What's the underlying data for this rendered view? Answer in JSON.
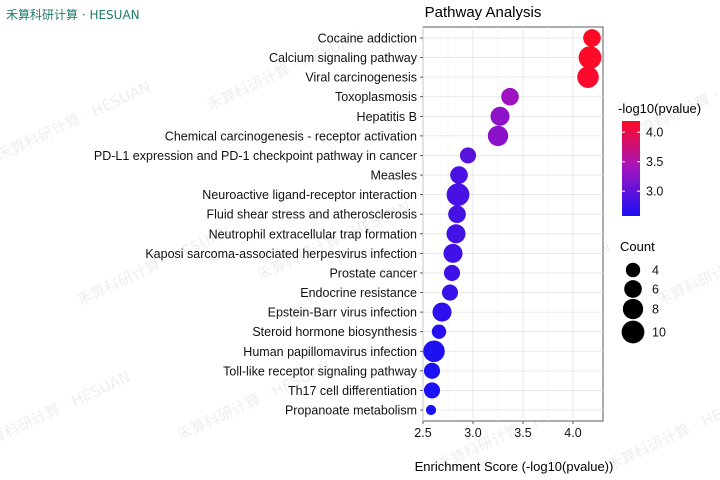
{
  "brand": "禾算科研计算 · HESUAN",
  "watermark": "禾算科研计算 · HESUAN",
  "chart_data": {
    "type": "scatter",
    "title": "Pathway Analysis",
    "xlabel": "Enrichment Score (-log10(pvalue))",
    "ylabel": "",
    "xlim": [
      2.5,
      4.3
    ],
    "xticks": [
      2.5,
      3.0,
      3.5,
      4.0
    ],
    "xtick_labels": [
      "2.5",
      "3.0",
      "3.5",
      "4.0"
    ],
    "grid": true,
    "categories": [
      "Cocaine addiction",
      "Calcium signaling pathway",
      "Viral carcinogenesis",
      "Toxoplasmosis",
      "Hepatitis B",
      "Chemical carcinogenesis - receptor activation",
      "PD-L1 expression and PD-1 checkpoint pathway in cancer",
      "Measles",
      "Neuroactive ligand-receptor interaction",
      "Fluid shear stress and atherosclerosis",
      "Neutrophil extracellular trap formation",
      "Kaposi sarcoma-associated herpesvirus infection",
      "Prostate cancer",
      "Endocrine resistance",
      "Epstein-Barr virus infection",
      "Steroid hormone biosynthesis",
      "Human papillomavirus infection",
      "Toll-like receptor signaling pathway",
      "Th17 cell differentiation",
      "Propanoate metabolism"
    ],
    "x": [
      4.19,
      4.17,
      4.15,
      3.37,
      3.27,
      3.25,
      2.95,
      2.86,
      2.85,
      2.84,
      2.83,
      2.8,
      2.79,
      2.77,
      2.69,
      2.66,
      2.61,
      2.59,
      2.59,
      2.58
    ],
    "count": [
      6,
      10,
      9,
      6,
      7,
      8,
      5,
      6,
      10,
      6,
      7,
      7,
      5,
      5,
      7,
      4,
      9,
      5,
      5,
      2
    ],
    "color_legend": {
      "title": "-log10(pvalue)",
      "ticks": [
        3.0,
        3.5,
        4.0
      ],
      "tick_labels": [
        "3.0",
        "3.5",
        "4.0"
      ],
      "range": [
        2.58,
        4.19
      ],
      "low_color": "#1a10f5",
      "mid_color": "#a014c0",
      "high_color": "#ff0a24"
    },
    "size_legend": {
      "title": "Count",
      "values": [
        4,
        6,
        8,
        10
      ],
      "labels": [
        "4",
        "6",
        "8",
        "10"
      ]
    },
    "legend_position": "right"
  }
}
